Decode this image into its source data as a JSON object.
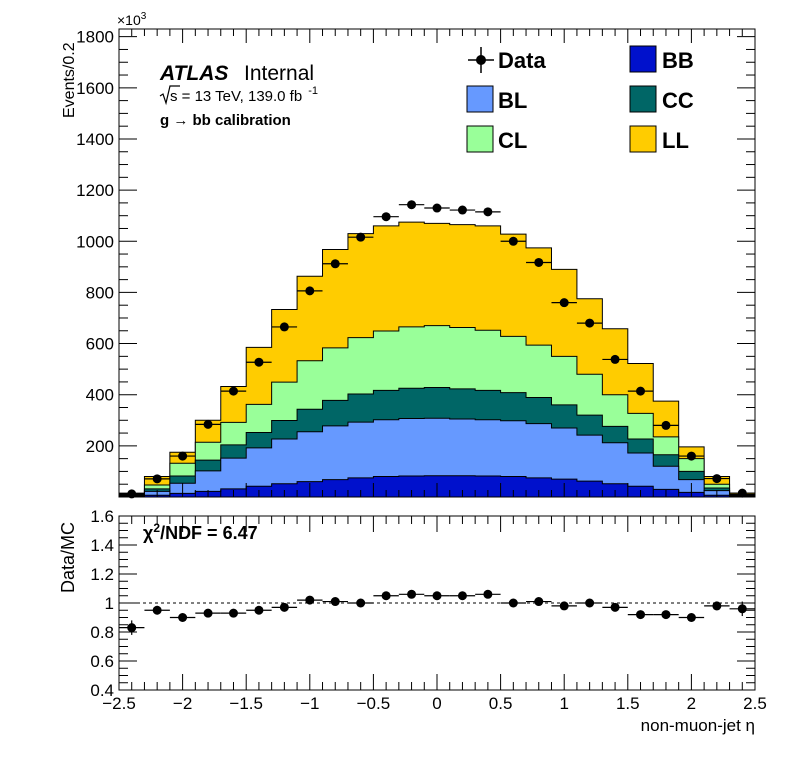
{
  "atlas": {
    "label": "ATLAS",
    "status": "Internal",
    "sqrt_s": "s",
    "energy": " = 13 TeV, 139.0 fb",
    "lumi_exp": "-1",
    "selection": "g  → bb calibration"
  },
  "legend": [
    {
      "key": "data",
      "label": "Data",
      "marker": "point",
      "color": "#000000"
    },
    {
      "key": "bb",
      "label": "BB",
      "marker": "box",
      "color": "#0011cc"
    },
    {
      "key": "bl",
      "label": "BL",
      "marker": "box",
      "color": "#6699ff"
    },
    {
      "key": "cc",
      "label": "CC",
      "marker": "box",
      "color": "#006666"
    },
    {
      "key": "cl",
      "label": "CL",
      "marker": "box",
      "color": "#99ff99"
    },
    {
      "key": "ll",
      "label": "LL",
      "marker": "box",
      "color": "#ffcc00"
    }
  ],
  "ratio_text": {
    "chi": "χ",
    "sq": "2",
    "rest": "/NDF = 6.47"
  },
  "chart_data": [
    {
      "type": "bar",
      "stacked": true,
      "ylabel": "Events/0.2",
      "y_multiplier": "×10",
      "y_multiplier_exp": "3",
      "xlim": [
        -2.5,
        2.5
      ],
      "ylim": [
        0,
        1830
      ],
      "yticks": [
        "200",
        "400",
        "600",
        "800",
        "1000",
        "1200",
        "1400",
        "1600",
        "1800"
      ],
      "bin_edges": [
        -2.5,
        -2.3,
        -2.1,
        -1.9,
        -1.7,
        -1.5,
        -1.3,
        -1.1,
        -0.9,
        -0.7,
        -0.5,
        -0.3,
        -0.1,
        0.1,
        0.3,
        0.5,
        0.7,
        0.9,
        1.1,
        1.3,
        1.5,
        1.7,
        1.9,
        2.1,
        2.3,
        2.5
      ],
      "series": [
        {
          "name": "BB",
          "color": "#0011cc",
          "values": [
            2,
            7,
            14,
            22,
            32,
            42,
            52,
            60,
            68,
            75,
            80,
            82,
            83,
            83,
            82,
            80,
            75,
            70,
            62,
            52,
            42,
            30,
            18,
            7,
            2
          ]
        },
        {
          "name": "BL",
          "color": "#6699ff",
          "values": [
            3,
            15,
            40,
            80,
            120,
            150,
            175,
            195,
            210,
            218,
            222,
            225,
            225,
            222,
            220,
            218,
            212,
            200,
            180,
            160,
            130,
            90,
            50,
            18,
            3
          ]
        },
        {
          "name": "CC",
          "color": "#006666",
          "values": [
            2,
            10,
            28,
            42,
            52,
            60,
            72,
            88,
            100,
            110,
            115,
            118,
            120,
            118,
            115,
            110,
            102,
            90,
            78,
            64,
            55,
            45,
            32,
            10,
            2
          ]
        },
        {
          "name": "CL",
          "color": "#99ff99",
          "values": [
            3,
            15,
            50,
            70,
            88,
            110,
            150,
            190,
            205,
            220,
            232,
            240,
            242,
            240,
            235,
            220,
            205,
            190,
            160,
            124,
            100,
            70,
            50,
            15,
            3
          ]
        },
        {
          "name": "LL",
          "color": "#ffcc00",
          "values": [
            5,
            33,
            43,
            86,
            140,
            223,
            284,
            330,
            385,
            407,
            411,
            410,
            400,
            402,
            408,
            400,
            380,
            340,
            295,
            258,
            195,
            140,
            46,
            30,
            5
          ]
        }
      ],
      "data_points": {
        "name": "Data",
        "x": [
          -2.4,
          -2.2,
          -2.0,
          -1.8,
          -1.6,
          -1.4,
          -1.2,
          -1.0,
          -0.8,
          -0.6,
          -0.4,
          -0.2,
          0.0,
          0.2,
          0.4,
          0.6,
          0.8,
          1.0,
          1.2,
          1.4,
          1.6,
          1.8,
          2.0,
          2.2,
          2.4
        ],
        "y": [
          12,
          71,
          160,
          284,
          414,
          527,
          665,
          806,
          912,
          1016,
          1096,
          1143,
          1130,
          1122,
          1115,
          1000,
          917,
          760,
          680,
          538,
          414,
          280,
          160,
          72,
          15
        ]
      }
    },
    {
      "type": "scatter",
      "ylabel": "Data/MC",
      "xlabel": "non-muon-jet η",
      "xlim": [
        -2.5,
        2.5
      ],
      "ylim": [
        0.4,
        1.6
      ],
      "xticks": [
        "−2.5",
        "−2",
        "−1.5",
        "−1",
        "−0.5",
        "0",
        "0.5",
        "1",
        "1.5",
        "2",
        "2.5"
      ],
      "yticks": [
        "0.4",
        "0.6",
        "0.8",
        "1",
        "1.2",
        "1.4",
        "1.6"
      ],
      "reference_line": 1.0,
      "x": [
        -2.4,
        -2.2,
        -2.0,
        -1.8,
        -1.6,
        -1.4,
        -1.2,
        -1.0,
        -0.8,
        -0.6,
        -0.4,
        -0.2,
        0.0,
        0.2,
        0.4,
        0.6,
        0.8,
        1.0,
        1.2,
        1.4,
        1.6,
        1.8,
        2.0,
        2.2,
        2.4
      ],
      "y": [
        0.83,
        0.95,
        0.9,
        0.93,
        0.93,
        0.95,
        0.97,
        1.02,
        1.01,
        1.0,
        1.05,
        1.06,
        1.05,
        1.05,
        1.06,
        1.0,
        1.01,
        0.98,
        1.0,
        0.97,
        0.92,
        0.92,
        0.9,
        0.98,
        0.96
      ],
      "yerr": [
        0.05,
        0.03,
        0.02,
        0.015,
        0.012,
        0.01,
        0.01,
        0.01,
        0.01,
        0.01,
        0.01,
        0.01,
        0.01,
        0.01,
        0.01,
        0.01,
        0.01,
        0.01,
        0.01,
        0.01,
        0.012,
        0.015,
        0.02,
        0.03,
        0.05
      ]
    }
  ]
}
